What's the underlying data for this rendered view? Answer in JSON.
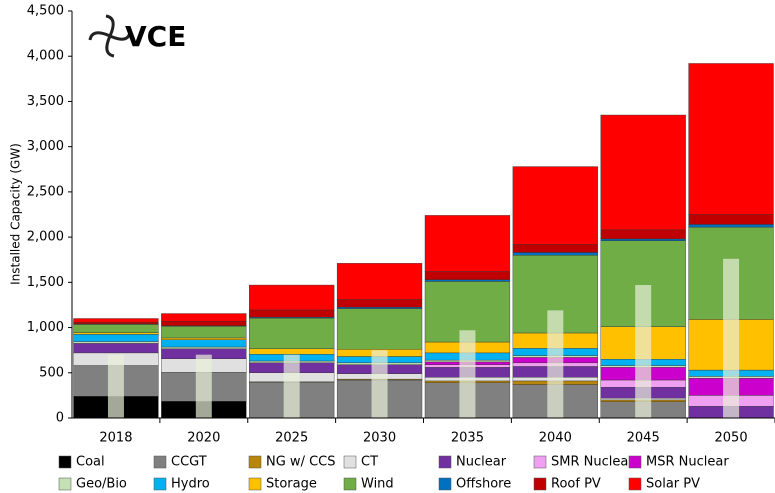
{
  "chart_data": {
    "type": "stacked_bar",
    "logo": "VCE",
    "ylabel": "Installed Capacity (GW)",
    "categories": [
      "2018",
      "2020",
      "2025",
      "2030",
      "2035",
      "2040",
      "2045",
      "2050"
    ],
    "ylim": [
      0,
      4500
    ],
    "yticks": [
      0,
      {
        "value": 500,
        "label": "500"
      },
      {
        "value": 1000,
        "label": "1,000"
      },
      {
        "value": 1500,
        "label": "1,500"
      },
      {
        "value": 2000,
        "label": "2,000"
      },
      {
        "value": 2500,
        "label": "2,500"
      },
      {
        "value": 3000,
        "label": "3,000"
      },
      {
        "value": 3500,
        "label": "3,500"
      },
      {
        "value": 4000,
        "label": "4,000"
      },
      {
        "value": 4500,
        "label": "4,500"
      }
    ],
    "series": [
      {
        "name": "Coal",
        "color": "#000000",
        "values": [
          240,
          185,
          0,
          0,
          0,
          0,
          0,
          0
        ]
      },
      {
        "name": "CCGT",
        "color": "#808080",
        "values": [
          340,
          320,
          395,
          420,
          390,
          370,
          180,
          0
        ]
      },
      {
        "name": "NG w/ CCS",
        "color": "#b8860b",
        "values": [
          0,
          0,
          5,
          10,
          20,
          40,
          20,
          0
        ]
      },
      {
        "name": "CT",
        "color": "#e0e0e0",
        "values": [
          140,
          150,
          100,
          60,
          40,
          40,
          20,
          0
        ]
      },
      {
        "name": "Nuclear",
        "color": "#7030a0",
        "values": [
          105,
          110,
          110,
          100,
          110,
          120,
          120,
          130
        ]
      },
      {
        "name": "SMR Nuclear",
        "color": "#f0a0f0",
        "values": [
          0,
          0,
          0,
          0,
          30,
          40,
          80,
          120
        ]
      },
      {
        "name": "MSR Nuclear",
        "color": "#cc00cc",
        "values": [
          0,
          0,
          0,
          0,
          30,
          60,
          140,
          190
        ]
      },
      {
        "name": "Geo/Bio",
        "color": "#c5e0b4",
        "values": [
          20,
          20,
          20,
          20,
          20,
          20,
          20,
          20
        ]
      },
      {
        "name": "Hydro",
        "color": "#00b0f0",
        "values": [
          80,
          80,
          75,
          70,
          80,
          80,
          70,
          70
        ]
      },
      {
        "name": "Storage",
        "color": "#ffc000",
        "values": [
          20,
          20,
          60,
          80,
          120,
          170,
          360,
          560
        ]
      },
      {
        "name": "Wind",
        "color": "#70ad47",
        "values": [
          90,
          130,
          340,
          450,
          670,
          860,
          950,
          1020
        ]
      },
      {
        "name": "Offshore",
        "color": "#0070c0",
        "values": [
          5,
          5,
          10,
          15,
          20,
          30,
          20,
          30
        ]
      },
      {
        "name": "Roof PV",
        "color": "#c00000",
        "values": [
          20,
          50,
          80,
          85,
          90,
          90,
          100,
          110
        ]
      },
      {
        "name": "Solar PV",
        "color": "#ff0000",
        "values": [
          40,
          85,
          275,
          400,
          620,
          860,
          1270,
          1670
        ]
      }
    ],
    "overlay": {
      "color": "#e8f0d8",
      "values": [
        700,
        700,
        700,
        750,
        970,
        1190,
        1470,
        1760
      ]
    }
  }
}
